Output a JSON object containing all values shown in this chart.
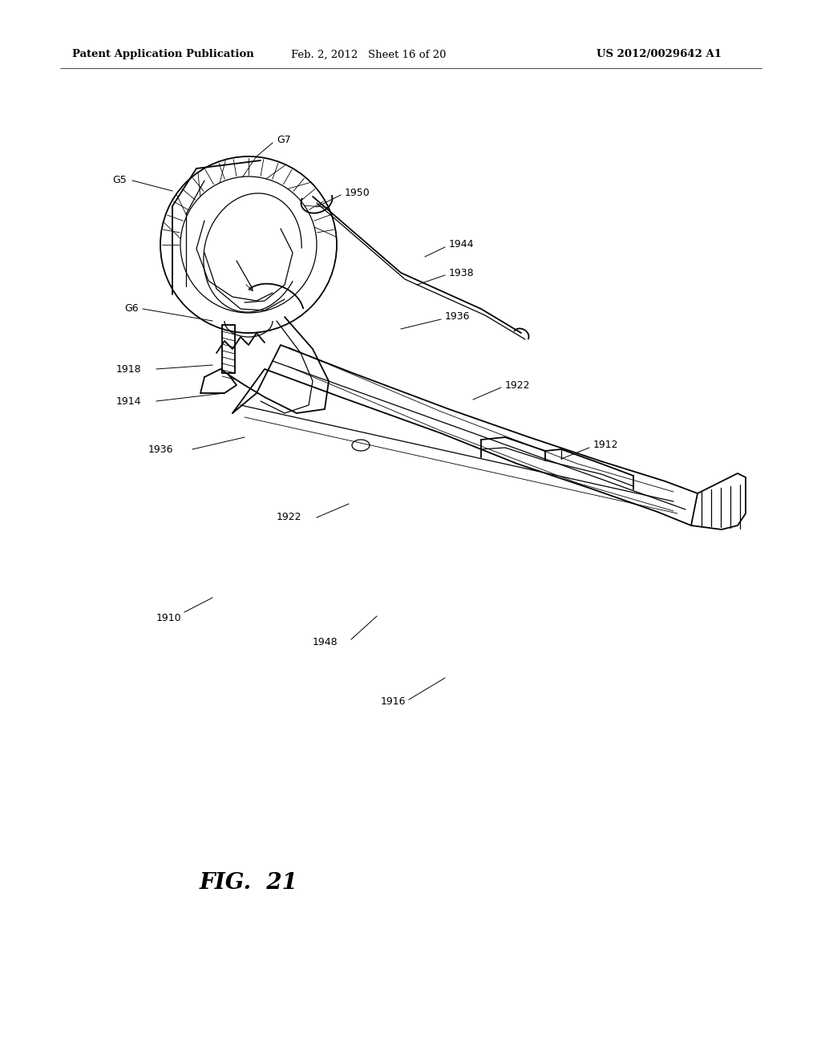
{
  "background_color": "#ffffff",
  "page_width": 10.24,
  "page_height": 13.2,
  "header_left": "Patent Application Publication",
  "header_center": "Feb. 2, 2012   Sheet 16 of 20",
  "header_right": "US 2012/0029642 A1",
  "figure_label": "FIG.  21",
  "header_font_size": 9.5,
  "label_font_size": 9,
  "fig_label_font_size": 20
}
